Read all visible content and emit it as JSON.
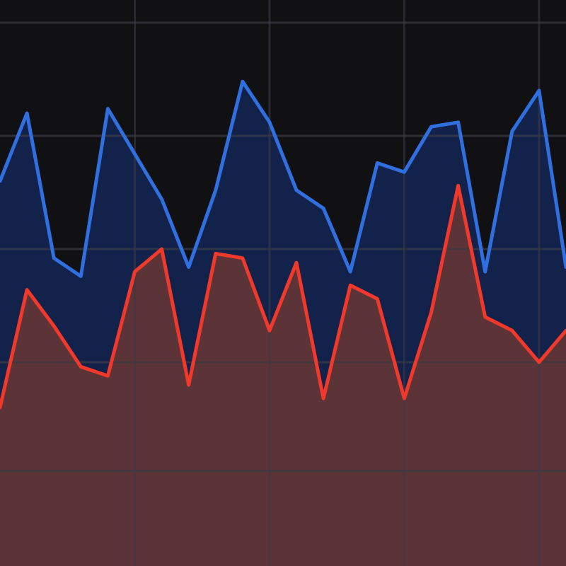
{
  "colors": {
    "background": "#111114",
    "grid": "#3a3a44",
    "blue_line": "#2f6fe0",
    "blue_fill": "#13224a",
    "red_line": "#f0392b",
    "red_fill": "#5c3336"
  },
  "chart_data": {
    "type": "area",
    "x": [
      0,
      1,
      2,
      3,
      4,
      5,
      6,
      7,
      8,
      9,
      10,
      11,
      12,
      13,
      14,
      15,
      16,
      17,
      18,
      19,
      20,
      21
    ],
    "series": [
      {
        "values": [
          4.25,
          5.0,
          3.4,
          3.2,
          5.05,
          4.55,
          4.05,
          3.3,
          4.15,
          5.35,
          4.9,
          4.15,
          3.95,
          3.25,
          4.45,
          4.35,
          4.85,
          4.9,
          3.25,
          4.8,
          5.25,
          3.3
        ]
      },
      {
        "values": [
          1.75,
          3.05,
          2.65,
          2.2,
          2.1,
          3.25,
          3.5,
          2.0,
          3.45,
          3.4,
          2.6,
          3.35,
          1.85,
          3.1,
          2.95,
          1.85,
          2.8,
          4.2,
          2.75,
          2.6,
          2.25,
          2.6
        ]
      }
    ],
    "xlim": [
      0,
      21
    ],
    "ylim": [
      0,
      6.25
    ],
    "grid": true
  }
}
